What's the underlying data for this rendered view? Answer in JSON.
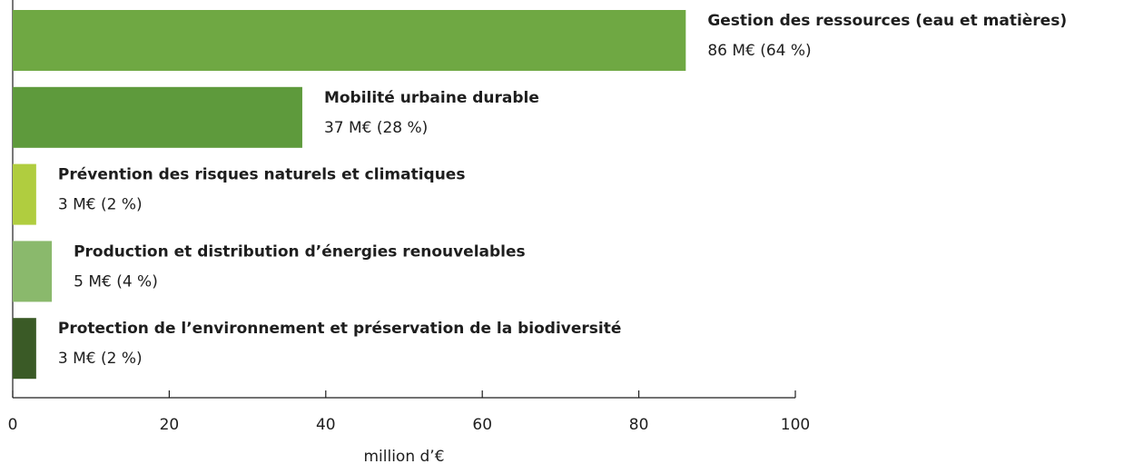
{
  "chart_data": {
    "type": "barh",
    "categories": [
      "Gestion des ressources (eau et matières)",
      "Mobilité urbaine durable",
      "Prévention des risques naturels et climatiques",
      "Production et distribution d’énergies renouvelables",
      "Protection de l’environnement et préservation de la biodiversité"
    ],
    "values": [
      86,
      37,
      3,
      5,
      3
    ],
    "value_labels": [
      "86 M€ (64 %)",
      "37 M€ (28 %)",
      "3 M€ (2 %)",
      "5 M€ (4 %)",
      "3 M€ (2 %)"
    ],
    "colors": [
      "#6fa843",
      "#5e9a3c",
      "#b0cd3f",
      "#8ab96c",
      "#3a5a26"
    ],
    "xlim": [
      0,
      100
    ],
    "xticks": [
      0,
      20,
      40,
      60,
      80,
      100
    ],
    "xlabel": "million d’€"
  }
}
